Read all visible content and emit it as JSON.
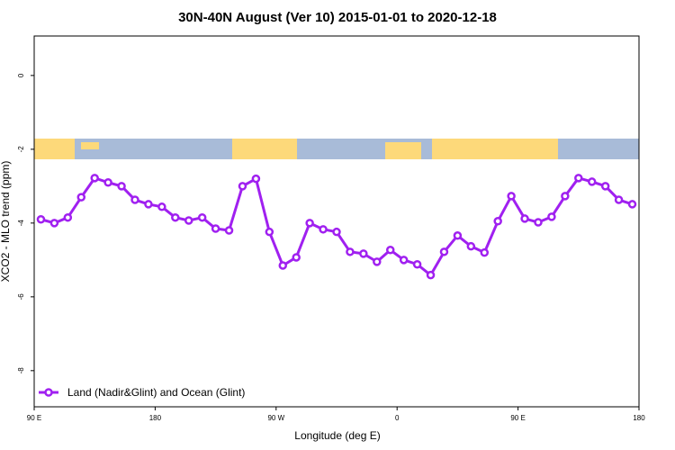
{
  "chart_data": {
    "type": "line",
    "title": "30N-40N August (Ver 10)   2015-01-01 to 2020-12-18",
    "x_label": "Longitude (deg E)",
    "y_label": "XCO2 - MLO trend (ppm)",
    "xlim": [
      90,
      540
    ],
    "xticks": [
      {
        "value": 90,
        "label": "90 E"
      },
      {
        "value": 180,
        "label": "180"
      },
      {
        "value": 270,
        "label": "90 W"
      },
      {
        "value": 360,
        "label": "0"
      },
      {
        "value": 450,
        "label": "90 E"
      },
      {
        "value": 540,
        "label": "180"
      }
    ],
    "ylim": [
      -8.98,
      1.07
    ],
    "yticks": [
      0,
      -2,
      -4,
      -6,
      -8
    ],
    "legend": "bottom-left",
    "x": [
      95,
      105,
      115,
      125,
      135,
      145,
      155,
      165,
      175,
      185,
      195,
      205,
      215,
      225,
      235,
      245,
      255,
      265,
      275,
      285,
      295,
      305,
      315,
      325,
      335,
      345,
      355,
      365,
      375,
      385,
      395,
      405,
      415,
      425,
      435,
      445,
      455,
      465,
      475,
      485,
      495,
      505,
      515,
      525,
      535
    ],
    "series": [
      {
        "name": "Land (Nadir&Glint) and Ocean (Glint)",
        "color": "#a020f0",
        "values": [
          -3.9,
          -4.0,
          -3.85,
          -3.3,
          -2.78,
          -2.9,
          -3.0,
          -3.37,
          -3.49,
          -3.56,
          -3.85,
          -3.93,
          -3.85,
          -4.15,
          -4.2,
          -3.0,
          -2.8,
          -4.24,
          -5.15,
          -4.93,
          -4.0,
          -4.17,
          -4.24,
          -4.78,
          -4.83,
          -5.05,
          -4.73,
          -5.0,
          -5.12,
          -5.41,
          -4.78,
          -4.34,
          -4.63,
          -4.8,
          -3.95,
          -3.27,
          -3.88,
          -3.98,
          -3.83,
          -3.27,
          -2.78,
          -2.88,
          -3.0,
          -3.37,
          -3.49
        ]
      }
    ]
  }
}
